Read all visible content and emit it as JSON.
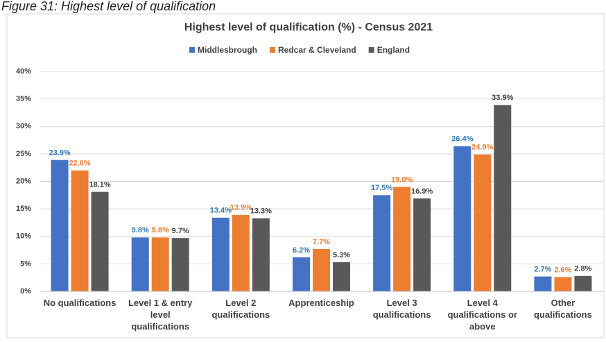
{
  "chart_data": {
    "type": "bar",
    "caption": "Figure 31: Highest level of qualification",
    "title": "Highest level of qualification (%) - Census 2021",
    "categories": [
      "No qualifications",
      "Level 1 & entry level qualifications",
      "Level 2 qualifications",
      "Apprenticeship",
      "Level 3 qualifications",
      "Level 4 qualifications or above",
      "Other qualifications"
    ],
    "series": [
      {
        "name": "Middlesbrough",
        "color": "#4472c4",
        "label_color": "#2e75b6",
        "values": [
          23.9,
          9.8,
          13.4,
          6.2,
          17.5,
          26.4,
          2.7
        ],
        "value_labels": [
          "23.9%",
          "9.8%",
          "13.4%",
          "6.2%",
          "17.5%",
          "26.4%",
          "2.7%"
        ]
      },
      {
        "name": "Redcar & Cleveland",
        "color": "#ed7d31",
        "label_color": "#ed7d31",
        "values": [
          22.0,
          9.8,
          13.9,
          7.7,
          19.0,
          24.9,
          2.6
        ],
        "value_labels": [
          "22.0%",
          "9.8%",
          "13.9%",
          "7.7%",
          "19.0%",
          "24.9%",
          "2.6%"
        ]
      },
      {
        "name": "England",
        "color": "#595959",
        "label_color": "#404040",
        "values": [
          18.1,
          9.7,
          13.3,
          5.3,
          16.9,
          33.9,
          2.8
        ],
        "value_labels": [
          "18.1%",
          "9.7%",
          "13.3%",
          "5.3%",
          "16.9%",
          "33.9%",
          "2.8%"
        ]
      }
    ],
    "ylim": [
      0,
      40
    ],
    "yticks": [
      {
        "value": 0,
        "label": "0%"
      },
      {
        "value": 5,
        "label": "5%"
      },
      {
        "value": 10,
        "label": "10%"
      },
      {
        "value": 15,
        "label": "15%"
      },
      {
        "value": 20,
        "label": "20%"
      },
      {
        "value": 25,
        "label": "25%"
      },
      {
        "value": 30,
        "label": "30%"
      },
      {
        "value": 35,
        "label": "35%"
      },
      {
        "value": 40,
        "label": "40%"
      }
    ],
    "grid": true,
    "legend": "top"
  }
}
